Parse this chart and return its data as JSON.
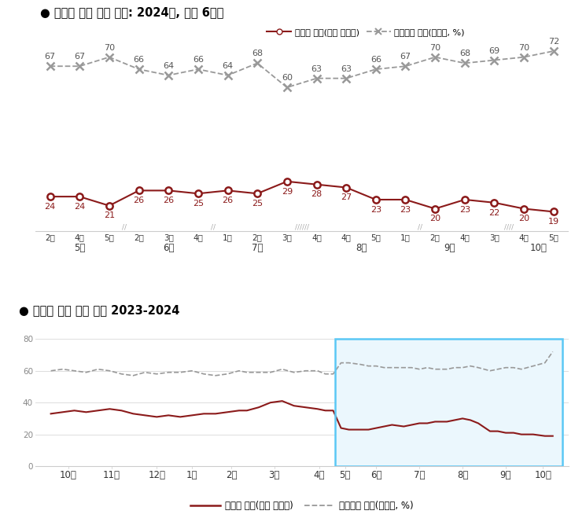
{
  "title1": "대통령 직무 수행 평가: 2024년, 최근 6개월",
  "title2": "대통령 직무 수행 평가 2023-2024",
  "legend_pos": "잘하고 있다(직무 긍정률)",
  "legend_neg": "잘못하고 있다(부정률, %)",
  "week_labels": [
    "2주",
    "4주",
    "5주",
    "2주",
    "3주",
    "4주",
    "1주",
    "2주",
    "3주",
    "4주",
    "4주",
    "5주",
    "1주",
    "2주",
    "4주",
    "3주",
    "4주",
    "5주"
  ],
  "top_pos": [
    24,
    24,
    21,
    26,
    26,
    25,
    26,
    25,
    29,
    28,
    27,
    23,
    23,
    20,
    23,
    22,
    20,
    19
  ],
  "top_neg": [
    67,
    67,
    70,
    66,
    64,
    66,
    64,
    68,
    60,
    63,
    63,
    66,
    67,
    70,
    68,
    69,
    70,
    72
  ],
  "month_group_centers": [
    1.0,
    4.0,
    7.0,
    10.5,
    13.5,
    16.5
  ],
  "month_group_labels": [
    "5월",
    "6월",
    "7월",
    "8월",
    "9월",
    "10월"
  ],
  "month_sep_positions": [
    2.5,
    5.5,
    8.5,
    12.5,
    15.5
  ],
  "month_sep_counts": [
    1,
    1,
    5,
    1,
    4
  ],
  "bottom_xlabels": [
    "10월",
    "11월",
    "12월",
    "1월",
    "2월",
    "3월",
    "4월",
    "5월",
    "6월",
    "7월",
    "8월",
    "9월",
    "10월"
  ],
  "pos_color": "#8B1A1A",
  "neg_color": "#999999",
  "neg_marker_color": "#999999",
  "highlight_edge_color": "#5BC8F5",
  "highlight_face_color": "#EBF7FD"
}
